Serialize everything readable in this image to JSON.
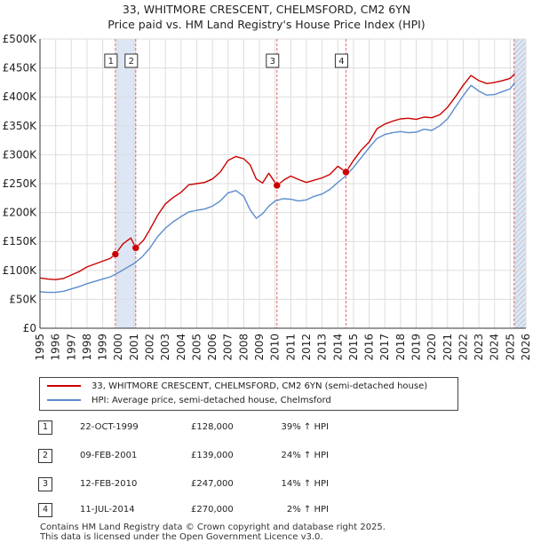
{
  "title_line1": "33, WHITMORE CRESCENT, CHELMSFORD, CM2 6YN",
  "title_line2": "Price paid vs. HM Land Registry's House Price Index (HPI)",
  "colors": {
    "property": "#cc0000",
    "hpi": "#5b8ccc",
    "shade": "#dce6f5",
    "grid": "#dddddd",
    "axis": "#333333",
    "vline": "#e06666"
  },
  "chart_data": {
    "type": "line",
    "xlim": [
      1995,
      2026
    ],
    "ylim": [
      0,
      500000
    ],
    "y_ticks": [
      0,
      50000,
      100000,
      150000,
      200000,
      250000,
      300000,
      350000,
      400000,
      450000,
      500000
    ],
    "y_tick_labels": [
      "£0",
      "£50K",
      "£100K",
      "£150K",
      "£200K",
      "£250K",
      "£300K",
      "£350K",
      "£400K",
      "£450K",
      "£500K"
    ],
    "x_tick_labels": [
      "1995",
      "1996",
      "1997",
      "1998",
      "1999",
      "2000",
      "2001",
      "2002",
      "2003",
      "2004",
      "2005",
      "2006",
      "2007",
      "2008",
      "2009",
      "2010",
      "2011",
      "2012",
      "2013",
      "2014",
      "2015",
      "2016",
      "2017",
      "2018",
      "2019",
      "2020",
      "2021",
      "2022",
      "2023",
      "2024",
      "2025",
      "2026"
    ],
    "shaded_spans": [
      [
        1999.81,
        2001.11
      ],
      [
        2025.25,
        2026
      ]
    ],
    "hatched_from": 2025.25,
    "series": [
      {
        "name": "33, WHITMORE CRESCENT, CHELMSFORD, CM2 6YN (semi-detached house)",
        "color": "#cc0000",
        "x": [
          1995,
          1995.5,
          1996,
          1996.5,
          1997,
          1997.5,
          1998,
          1998.5,
          1999,
          1999.5,
          1999.81,
          2000.3,
          2000.8,
          2001.11,
          2001.6,
          2002.0,
          2002.5,
          2003.0,
          2003.5,
          2004.0,
          2004.5,
          2005.0,
          2005.5,
          2006.0,
          2006.5,
          2007.0,
          2007.5,
          2008.0,
          2008.4,
          2008.8,
          2009.2,
          2009.6,
          2010.12,
          2010.6,
          2011.0,
          2011.5,
          2012.0,
          2012.5,
          2013.0,
          2013.5,
          2014.0,
          2014.52,
          2015.0,
          2015.5,
          2016.0,
          2016.5,
          2017.0,
          2017.5,
          2018.0,
          2018.5,
          2019.0,
          2019.5,
          2020.0,
          2020.5,
          2021.0,
          2021.5,
          2022.0,
          2022.5,
          2023.0,
          2023.5,
          2024.0,
          2024.5,
          2025.0,
          2025.3
        ],
        "y": [
          87000,
          85000,
          84000,
          86000,
          92000,
          98000,
          106000,
          111000,
          116000,
          121000,
          128000,
          146000,
          156000,
          139000,
          152000,
          170000,
          195000,
          215000,
          226000,
          235000,
          248000,
          250000,
          252000,
          258000,
          270000,
          290000,
          297000,
          293000,
          283000,
          258000,
          251000,
          268000,
          247000,
          257000,
          263000,
          257000,
          252000,
          256000,
          260000,
          266000,
          280000,
          270000,
          290000,
          308000,
          322000,
          345000,
          353000,
          358000,
          362000,
          363000,
          361000,
          365000,
          364000,
          369000,
          382000,
          400000,
          420000,
          437000,
          428000,
          423000,
          425000,
          428000,
          432000,
          440000
        ]
      },
      {
        "name": "HPI: Average price, semi-detached house, Chelmsford",
        "color": "#5b8ccc",
        "x": [
          1995,
          1995.5,
          1996,
          1996.5,
          1997,
          1997.5,
          1998,
          1998.5,
          1999,
          1999.5,
          2000,
          2000.5,
          2001,
          2001.5,
          2002.0,
          2002.5,
          2003.0,
          2003.5,
          2004.0,
          2004.5,
          2005.0,
          2005.5,
          2006.0,
          2006.5,
          2007.0,
          2007.5,
          2008.0,
          2008.4,
          2008.8,
          2009.2,
          2009.6,
          2010.0,
          2010.5,
          2011.0,
          2011.5,
          2012.0,
          2012.5,
          2013.0,
          2013.5,
          2014.0,
          2014.5,
          2015.0,
          2015.5,
          2016.0,
          2016.5,
          2017.0,
          2017.5,
          2018.0,
          2018.5,
          2019.0,
          2019.5,
          2020.0,
          2020.5,
          2021.0,
          2021.5,
          2022.0,
          2022.5,
          2023.0,
          2023.5,
          2024.0,
          2024.5,
          2025.0,
          2025.3
        ],
        "y": [
          63000,
          62000,
          62000,
          64000,
          68000,
          72000,
          77000,
          81000,
          85000,
          89000,
          96000,
          104000,
          112000,
          123000,
          138000,
          158000,
          173000,
          184000,
          193000,
          201000,
          204000,
          206000,
          211000,
          220000,
          234000,
          238000,
          228000,
          205000,
          190000,
          198000,
          211000,
          220000,
          224000,
          223000,
          220000,
          222000,
          228000,
          232000,
          240000,
          252000,
          263000,
          278000,
          295000,
          312000,
          328000,
          335000,
          338000,
          340000,
          338000,
          339000,
          344000,
          342000,
          350000,
          362000,
          382000,
          402000,
          420000,
          410000,
          403000,
          404000,
          409000,
          414000,
          425000
        ]
      }
    ],
    "sale_points": [
      {
        "label": "1",
        "x": 1999.81,
        "y": 128000
      },
      {
        "label": "2",
        "x": 2001.11,
        "y": 139000
      },
      {
        "label": "3",
        "x": 2010.12,
        "y": 247000
      },
      {
        "label": "4",
        "x": 2014.52,
        "y": 270000
      }
    ]
  },
  "legend": {
    "property_label": "33, WHITMORE CRESCENT, CHELMSFORD, CM2 6YN (semi-detached house)",
    "hpi_label": "HPI: Average price, semi-detached house, Chelmsford"
  },
  "sales": [
    {
      "num": "1",
      "date": "22-OCT-1999",
      "price": "£128,000",
      "hpi": "39% ↑ HPI"
    },
    {
      "num": "2",
      "date": "09-FEB-2001",
      "price": "£139,000",
      "hpi": "24% ↑ HPI"
    },
    {
      "num": "3",
      "date": "12-FEB-2010",
      "price": "£247,000",
      "hpi": "14% ↑ HPI"
    },
    {
      "num": "4",
      "date": "11-JUL-2014",
      "price": "£270,000",
      "hpi": "2% ↑ HPI"
    }
  ],
  "footer": {
    "line1": "Contains HM Land Registry data © Crown copyright and database right 2025.",
    "line2": "This data is licensed under the Open Government Licence v3.0."
  }
}
